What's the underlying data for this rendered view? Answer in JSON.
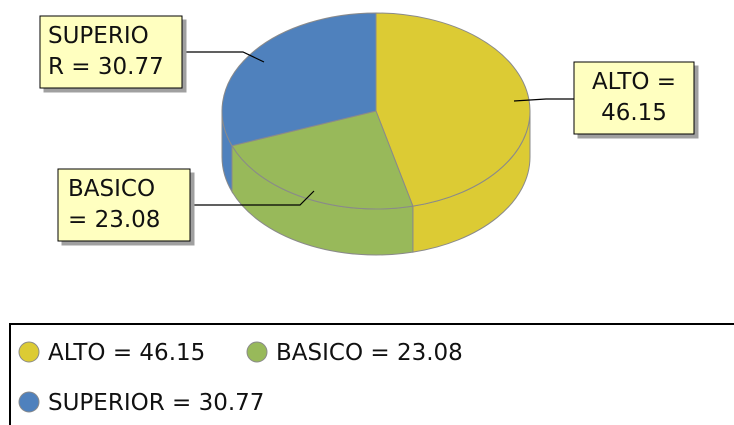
{
  "chart_data": {
    "type": "pie",
    "style": "3d",
    "slices": [
      {
        "label": "ALTO",
        "value": 46.15,
        "color": "#dccb34",
        "callout_lines": [
          "ALTO =",
          "46.15"
        ],
        "legend_text": "ALTO = 46.15"
      },
      {
        "label": "BASICO",
        "value": 23.08,
        "color": "#98b95a",
        "callout_lines": [
          "BASICO",
          " = 23.08"
        ],
        "legend_text": "BASICO = 23.08"
      },
      {
        "label": "SUPERIOR",
        "value": 30.77,
        "color": "#4f81bd",
        "callout_lines": [
          "SUPERIO",
          "R = 30.77"
        ],
        "legend_text": "SUPERIOR = 30.77"
      }
    ],
    "legend_position": "bottom",
    "callout_fill": "#ffffc0"
  }
}
